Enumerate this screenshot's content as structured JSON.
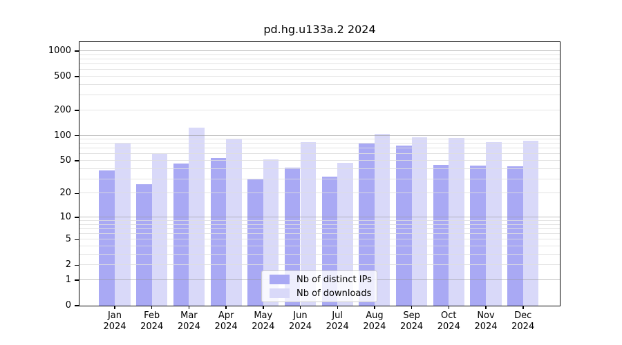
{
  "chart_data": {
    "type": "bar",
    "title": "pd.hg.u133a.2 2024",
    "xlabel": "",
    "ylabel": "",
    "categories": [
      "Jan",
      "Feb",
      "Mar",
      "Apr",
      "May",
      "Jun",
      "Jul",
      "Aug",
      "Sep",
      "Oct",
      "Nov",
      "Dec"
    ],
    "x_year_label": "2024",
    "series": [
      {
        "name": "Nb of distinct IPs",
        "color": "#a9a9f4",
        "values": [
          38,
          26,
          46,
          54,
          30,
          41,
          32,
          80,
          76,
          45,
          44,
          43
        ]
      },
      {
        "name": "Nb of downloads",
        "color": "#d9d9f9",
        "values": [
          80,
          61,
          125,
          92,
          52,
          84,
          47,
          105,
          95,
          93,
          84,
          86
        ]
      }
    ],
    "yscale": "log1p",
    "yticks": [
      0,
      1,
      2,
      5,
      10,
      20,
      50,
      100,
      200,
      500,
      1000
    ],
    "ylim": [
      0,
      1280
    ],
    "grid": {
      "on": true,
      "major_values": [
        1,
        10,
        100,
        1000
      ],
      "minor_bases": [
        2,
        3,
        4,
        5,
        6,
        7,
        8,
        9
      ],
      "minor_decades": [
        1,
        10,
        100
      ]
    },
    "legend_position": "lower center"
  }
}
